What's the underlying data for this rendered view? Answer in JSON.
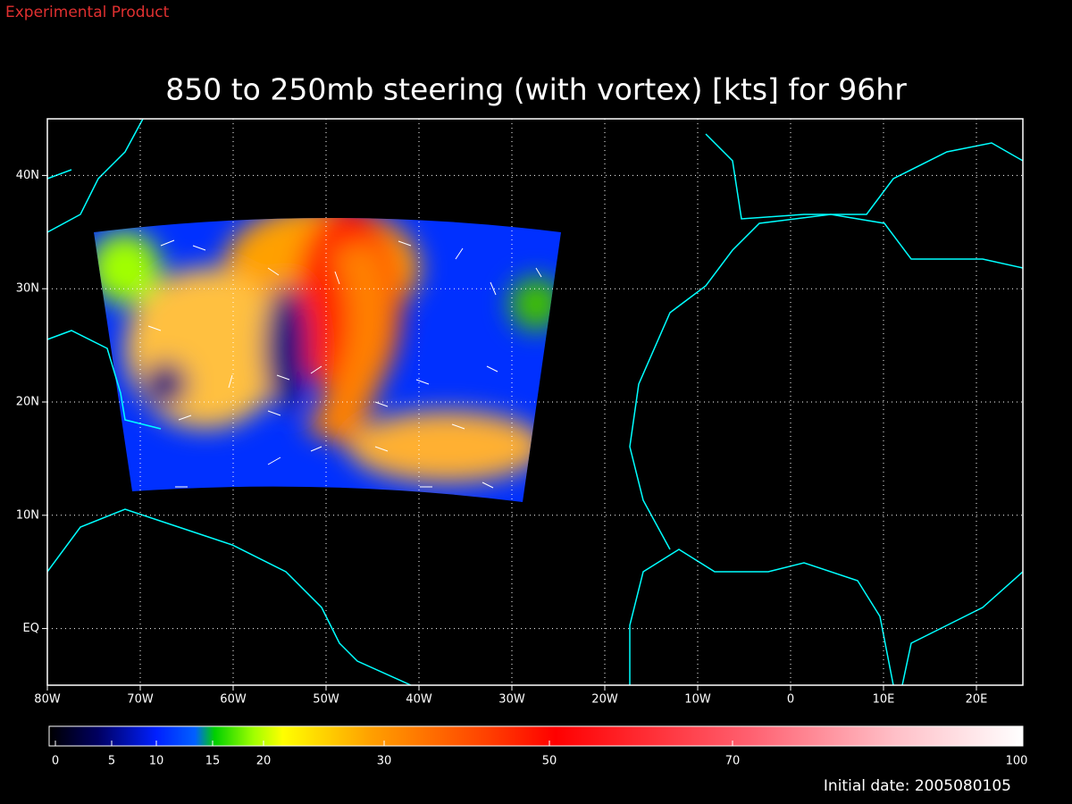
{
  "header": {
    "note": "Experimental Product"
  },
  "title": "850 to 250mb steering (with vortex) [kts] for 96hr",
  "map": {
    "lon_range": [
      -80,
      25
    ],
    "lat_range": [
      -5,
      45
    ],
    "lon_ticks": [
      {
        "value": -80,
        "label": "80W"
      },
      {
        "value": -70,
        "label": "70W"
      },
      {
        "value": -60,
        "label": "60W"
      },
      {
        "value": -50,
        "label": "50W"
      },
      {
        "value": -40,
        "label": "40W"
      },
      {
        "value": -30,
        "label": "30W"
      },
      {
        "value": -20,
        "label": "20W"
      },
      {
        "value": -10,
        "label": "10W"
      },
      0,
      {
        "value": 10,
        "label": "10E"
      },
      {
        "value": 20,
        "label": "20E"
      }
    ],
    "lat_ticks": [
      {
        "value": 0,
        "label": "EQ"
      },
      {
        "value": 10,
        "label": "10N"
      },
      {
        "value": 20,
        "label": "20N"
      },
      {
        "value": 30,
        "label": "30N"
      },
      {
        "value": 40,
        "label": "40N"
      }
    ]
  },
  "colorbar": {
    "ticks": [
      0,
      5,
      10,
      15,
      20,
      30,
      50,
      70,
      100
    ]
  },
  "footer": {
    "initial_date": "Initial date: 2005080105"
  }
}
